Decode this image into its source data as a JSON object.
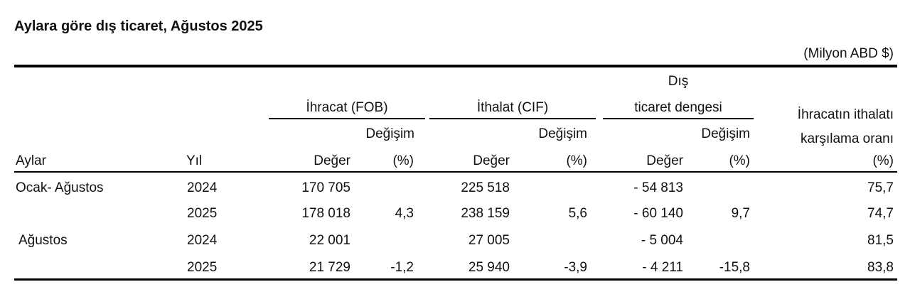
{
  "title": "Aylara göre dış ticaret, Ağustos 2025",
  "unit": "(Milyon ABD $)",
  "headers": {
    "aylar": "Aylar",
    "yil": "Yıl",
    "ihracat": "İhracat (FOB)",
    "ithalat": "İthalat (CIF)",
    "dis_1": "Dış",
    "dis_2": "ticaret dengesi",
    "oran_1": "İhracatın ithalatı",
    "oran_2": "karşılama oranı",
    "oran_3": "(%)",
    "degisim": "Değişim",
    "deger": "Değer",
    "pct": "(%)"
  },
  "rows": [
    {
      "ay": "Ocak- Ağustos",
      "yil": "2024",
      "ihr": "170 705",
      "ihr_pct": "",
      "ith": "225 518",
      "ith_pct": "",
      "den": "- 54 813",
      "den_pct": "",
      "oran": "75,7"
    },
    {
      "ay": "",
      "yil": "2025",
      "ihr": "178 018",
      "ihr_pct": "4,3",
      "ith": "238 159",
      "ith_pct": "5,6",
      "den": "- 60 140",
      "den_pct": "9,7",
      "oran": "74,7"
    },
    {
      "ay": "Ağustos",
      "yil": "2024",
      "ihr": "22 001",
      "ihr_pct": "",
      "ith": "27 005",
      "ith_pct": "",
      "den": "- 5 004",
      "den_pct": "",
      "oran": "81,5"
    },
    {
      "ay": "",
      "yil": "2025",
      "ihr": "21 729",
      "ihr_pct": "-1,2",
      "ith": "25 940",
      "ith_pct": "-3,9",
      "den": "- 4 211",
      "den_pct": "-15,8",
      "oran": "83,8"
    }
  ]
}
